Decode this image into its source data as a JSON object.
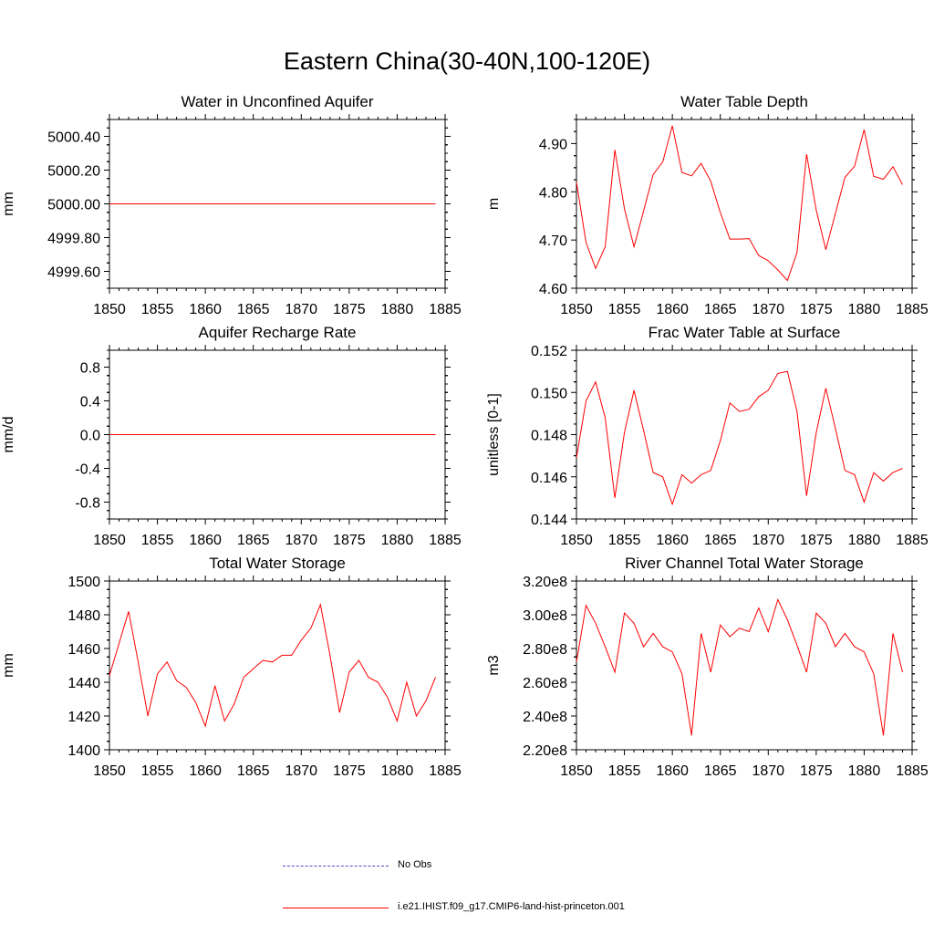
{
  "title": "Eastern China(30-40N,100-120E)",
  "colors": {
    "model": "#ff0000",
    "obs": "#4b4bc8",
    "axis": "#000000"
  },
  "legend": {
    "obs_label": "No Obs",
    "model_label": "i.e21.IHIST.f09_g17.CMIP6-land-hist-princeton.001"
  },
  "chart_data": [
    {
      "type": "line",
      "title": "Water in Unconfined Aquifer",
      "ylabel": "mm",
      "xlim": [
        1850,
        1885
      ],
      "ylim": [
        4999.5,
        5000.5
      ],
      "xticks": [
        1850,
        1855,
        1860,
        1865,
        1870,
        1875,
        1880,
        1885
      ],
      "yticks": [
        4999.6,
        4999.8,
        5000.0,
        5000.2,
        5000.4
      ],
      "ytick_labels": [
        "4999.60",
        "4999.80",
        "5000.00",
        "5000.20",
        "5000.40"
      ],
      "x": [
        1850,
        1851,
        1852,
        1853,
        1854,
        1855,
        1856,
        1857,
        1858,
        1859,
        1860,
        1861,
        1862,
        1863,
        1864,
        1865,
        1866,
        1867,
        1868,
        1869,
        1870,
        1871,
        1872,
        1873,
        1874,
        1875,
        1876,
        1877,
        1878,
        1879,
        1880,
        1881,
        1882,
        1883,
        1884
      ],
      "values": [
        5000,
        5000,
        5000,
        5000,
        5000,
        5000,
        5000,
        5000,
        5000,
        5000,
        5000,
        5000,
        5000,
        5000,
        5000,
        5000,
        5000,
        5000,
        5000,
        5000,
        5000,
        5000,
        5000,
        5000,
        5000,
        5000,
        5000,
        5000,
        5000,
        5000,
        5000,
        5000,
        5000,
        5000,
        5000
      ]
    },
    {
      "type": "line",
      "title": "Water Table Depth",
      "ylabel": "m",
      "xlim": [
        1850,
        1885
      ],
      "ylim": [
        4.6,
        4.95
      ],
      "xticks": [
        1850,
        1855,
        1860,
        1865,
        1870,
        1875,
        1880,
        1885
      ],
      "yticks": [
        4.6,
        4.7,
        4.8,
        4.9
      ],
      "ytick_labels": [
        "4.60",
        "4.70",
        "4.80",
        "4.90"
      ],
      "x": [
        1850,
        1851,
        1852,
        1853,
        1854,
        1855,
        1856,
        1857,
        1858,
        1859,
        1860,
        1861,
        1862,
        1863,
        1864,
        1865,
        1866,
        1867,
        1868,
        1869,
        1870,
        1871,
        1872,
        1873,
        1874,
        1875,
        1876,
        1877,
        1878,
        1879,
        1880,
        1881,
        1882,
        1883,
        1884
      ],
      "values": [
        4.82,
        4.695,
        4.641,
        4.686,
        4.887,
        4.765,
        4.686,
        4.76,
        4.836,
        4.862,
        4.937,
        4.84,
        4.833,
        4.859,
        4.822,
        4.757,
        4.702,
        4.702,
        4.703,
        4.668,
        4.657,
        4.638,
        4.616,
        4.674,
        4.878,
        4.762,
        4.68,
        4.755,
        4.83,
        4.853,
        4.929,
        4.832,
        4.826,
        4.852,
        4.815
      ]
    },
    {
      "type": "line",
      "title": "Aquifer Recharge Rate",
      "ylabel": "mm/d",
      "xlim": [
        1850,
        1885
      ],
      "ylim": [
        -1.0,
        1.0
      ],
      "xticks": [
        1850,
        1855,
        1860,
        1865,
        1870,
        1875,
        1880,
        1885
      ],
      "yticks": [
        -0.8,
        -0.4,
        0.0,
        0.4,
        0.8
      ],
      "ytick_labels": [
        "-0.8",
        "-0.4",
        "0.0",
        "0.4",
        "0.8"
      ],
      "x": [
        1850,
        1851,
        1852,
        1853,
        1854,
        1855,
        1856,
        1857,
        1858,
        1859,
        1860,
        1861,
        1862,
        1863,
        1864,
        1865,
        1866,
        1867,
        1868,
        1869,
        1870,
        1871,
        1872,
        1873,
        1874,
        1875,
        1876,
        1877,
        1878,
        1879,
        1880,
        1881,
        1882,
        1883,
        1884
      ],
      "values": [
        0,
        0,
        0,
        0,
        0,
        0,
        0,
        0,
        0,
        0,
        0,
        0,
        0,
        0,
        0,
        0,
        0,
        0,
        0,
        0,
        0,
        0,
        0,
        0,
        0,
        0,
        0,
        0,
        0,
        0,
        0,
        0,
        0,
        0,
        0
      ]
    },
    {
      "type": "line",
      "title": "Frac Water Table at Surface",
      "ylabel": "unitless [0-1]",
      "xlim": [
        1850,
        1885
      ],
      "ylim": [
        0.144,
        0.152
      ],
      "xticks": [
        1850,
        1855,
        1860,
        1865,
        1870,
        1875,
        1880,
        1885
      ],
      "yticks": [
        0.144,
        0.146,
        0.148,
        0.15,
        0.152
      ],
      "ytick_labels": [
        "0.144",
        "0.146",
        "0.148",
        "0.150",
        "0.152"
      ],
      "x": [
        1850,
        1851,
        1852,
        1853,
        1854,
        1855,
        1856,
        1857,
        1858,
        1859,
        1860,
        1861,
        1862,
        1863,
        1864,
        1865,
        1866,
        1867,
        1868,
        1869,
        1870,
        1871,
        1872,
        1873,
        1874,
        1875,
        1876,
        1877,
        1878,
        1879,
        1880,
        1881,
        1882,
        1883,
        1884
      ],
      "values": [
        0.1469,
        0.1496,
        0.1505,
        0.1488,
        0.145,
        0.1481,
        0.1501,
        0.1482,
        0.1462,
        0.146,
        0.1447,
        0.1461,
        0.1457,
        0.1461,
        0.1463,
        0.1477,
        0.1495,
        0.1491,
        0.1492,
        0.1498,
        0.1501,
        0.1509,
        0.151,
        0.1491,
        0.1451,
        0.1481,
        0.1502,
        0.1483,
        0.1463,
        0.1461,
        0.1448,
        0.1462,
        0.1458,
        0.1462,
        0.1464
      ]
    },
    {
      "type": "line",
      "title": "Total Water Storage",
      "ylabel": "mm",
      "xlim": [
        1850,
        1885
      ],
      "ylim": [
        1400,
        1500
      ],
      "xticks": [
        1850,
        1855,
        1860,
        1865,
        1870,
        1875,
        1880,
        1885
      ],
      "yticks": [
        1400,
        1420,
        1440,
        1460,
        1480,
        1500
      ],
      "ytick_labels": [
        "1400",
        "1420",
        "1440",
        "1460",
        "1480",
        "1500"
      ],
      "x": [
        1850,
        1851,
        1852,
        1853,
        1854,
        1855,
        1856,
        1857,
        1858,
        1859,
        1860,
        1861,
        1862,
        1863,
        1864,
        1865,
        1866,
        1867,
        1868,
        1869,
        1870,
        1871,
        1872,
        1873,
        1874,
        1875,
        1876,
        1877,
        1878,
        1879,
        1880,
        1881,
        1882,
        1883,
        1884
      ],
      "values": [
        1444,
        1463,
        1482,
        1452,
        1420,
        1445,
        1452,
        1441,
        1437,
        1428,
        1414,
        1438,
        1417,
        1427,
        1443,
        1448,
        1453,
        1452,
        1456,
        1456,
        1465,
        1472,
        1486,
        1456,
        1422,
        1446,
        1453,
        1443,
        1440,
        1431,
        1417,
        1440,
        1420,
        1429,
        1443
      ]
    },
    {
      "type": "line",
      "title": "River Channel Total Water Storage",
      "ylabel": "m3",
      "xlim": [
        1850,
        1885
      ],
      "ylim": [
        220000000,
        320000000
      ],
      "xticks": [
        1850,
        1855,
        1860,
        1865,
        1870,
        1875,
        1880,
        1885
      ],
      "yticks": [
        220000000,
        240000000,
        260000000,
        280000000,
        300000000,
        320000000
      ],
      "ytick_labels": [
        "2.20e8",
        "2.40e8",
        "2.60e8",
        "2.80e8",
        "3.00e8",
        "3.20e8"
      ],
      "x": [
        1850,
        1851,
        1852,
        1853,
        1854,
        1855,
        1856,
        1857,
        1858,
        1859,
        1860,
        1861,
        1862,
        1863,
        1864,
        1865,
        1866,
        1867,
        1868,
        1869,
        1870,
        1871,
        1872,
        1873,
        1874,
        1875,
        1876,
        1877,
        1878,
        1879,
        1880,
        1881,
        1882,
        1883,
        1884
      ],
      "values": [
        272000000,
        305500000,
        295000000,
        281000000,
        266000000,
        301000000,
        295000000,
        281000000,
        289000000,
        281000000,
        278000000,
        265000000,
        228500000,
        289000000,
        266000000,
        294000000,
        287000000,
        292000000,
        290000000,
        304000000,
        290000000,
        309000000,
        297000000,
        282000000,
        266000000,
        301000000,
        295000000,
        281000000,
        289000000,
        281000000,
        278000000,
        265000000,
        228500000,
        289000000,
        266000000
      ]
    }
  ]
}
